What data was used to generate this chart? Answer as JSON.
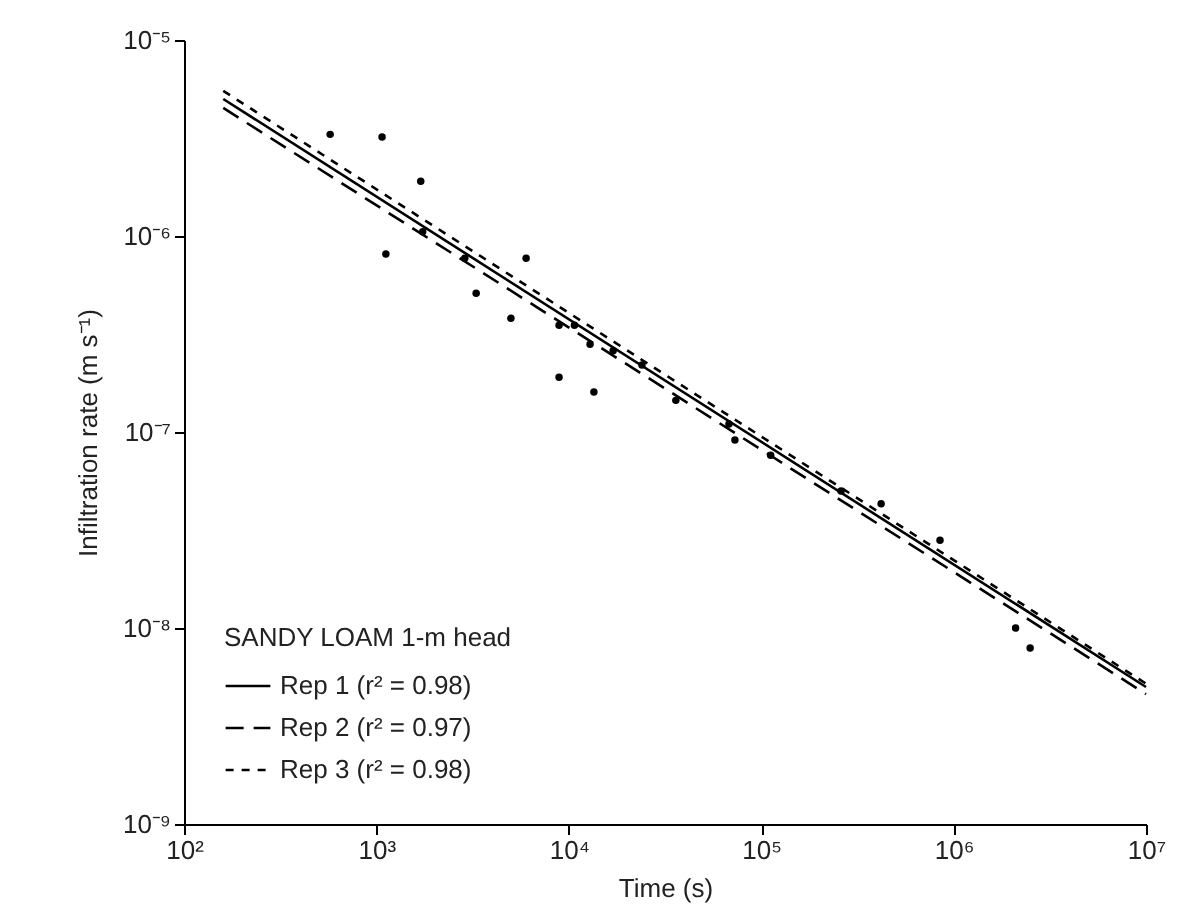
{
  "chart_data": {
    "type": "line",
    "xlabel": "Time (s)",
    "ylabel": "Infiltration rate  (m s⁻¹)",
    "legend_title": "SANDY LOAM 1-m head",
    "legend": "bottom left",
    "log": "xy",
    "grid": false,
    "xlim": [
      100,
      10000000
    ],
    "xticks": [
      {
        "value": 100,
        "label": "10²"
      },
      {
        "value": 1000,
        "label": "10³"
      },
      {
        "value": 10000,
        "label": "10⁴"
      },
      {
        "value": 100000,
        "label": "10⁵"
      },
      {
        "value": 1000000,
        "label": "10⁶"
      },
      {
        "value": 10000000,
        "label": "10⁷"
      }
    ],
    "ylim": [
      1e-09,
      1e-05
    ],
    "yticks": [
      {
        "value": 1e-09,
        "label": "10⁻⁹"
      },
      {
        "value": 1e-08,
        "label": "10⁻⁸"
      },
      {
        "value": 1e-07,
        "label": "10⁻⁷"
      },
      {
        "value": 1e-06,
        "label": "10⁻⁶"
      },
      {
        "value": 1e-05,
        "label": "10⁻⁵"
      }
    ],
    "series": [
      {
        "name": "Rep 1 (r² = 0.98)",
        "line_style": "solid",
        "color": "#000000",
        "x": [
          160,
          10000000
        ],
        "values": [
          5e-06,
          5e-09
        ]
      },
      {
        "name": "Rep 2 (r² = 0.97)",
        "line_style": "dashed",
        "color": "#000000",
        "x": [
          160,
          10000000
        ],
        "values": [
          4.5e-06,
          4.6e-09
        ]
      },
      {
        "name": "Rep 3 (r² = 0.98)",
        "line_style": "dotted",
        "color": "#000000",
        "x": [
          160,
          10000000
        ],
        "values": [
          5.5e-06,
          5.2e-09
        ]
      },
      {
        "type": "scatter",
        "marker": "circle",
        "color": "#000000",
        "x": [
          575,
          1070,
          1700,
          1120,
          1740,
          2880,
          3300,
          5000,
          6000,
          8900,
          10700,
          12900,
          8900,
          13500,
          17000,
          24000,
          36000,
          68000,
          73000,
          112000,
          260000,
          420000,
          850000,
          2100000,
          2500000
        ],
        "values": [
          3.3e-06,
          3.2e-06,
          1.9e-06,
          8.1e-07,
          1.05e-06,
          7.7e-07,
          5.1e-07,
          3.8e-07,
          7.7e-07,
          3.5e-07,
          3.5e-07,
          2.8e-07,
          1.9e-07,
          1.6e-07,
          2.6e-07,
          2.2e-07,
          1.45e-07,
          1.1e-07,
          9.1e-08,
          7.6e-08,
          5e-08,
          4.3e-08,
          2.8e-08,
          1e-08,
          7.9e-09
        ]
      }
    ]
  }
}
